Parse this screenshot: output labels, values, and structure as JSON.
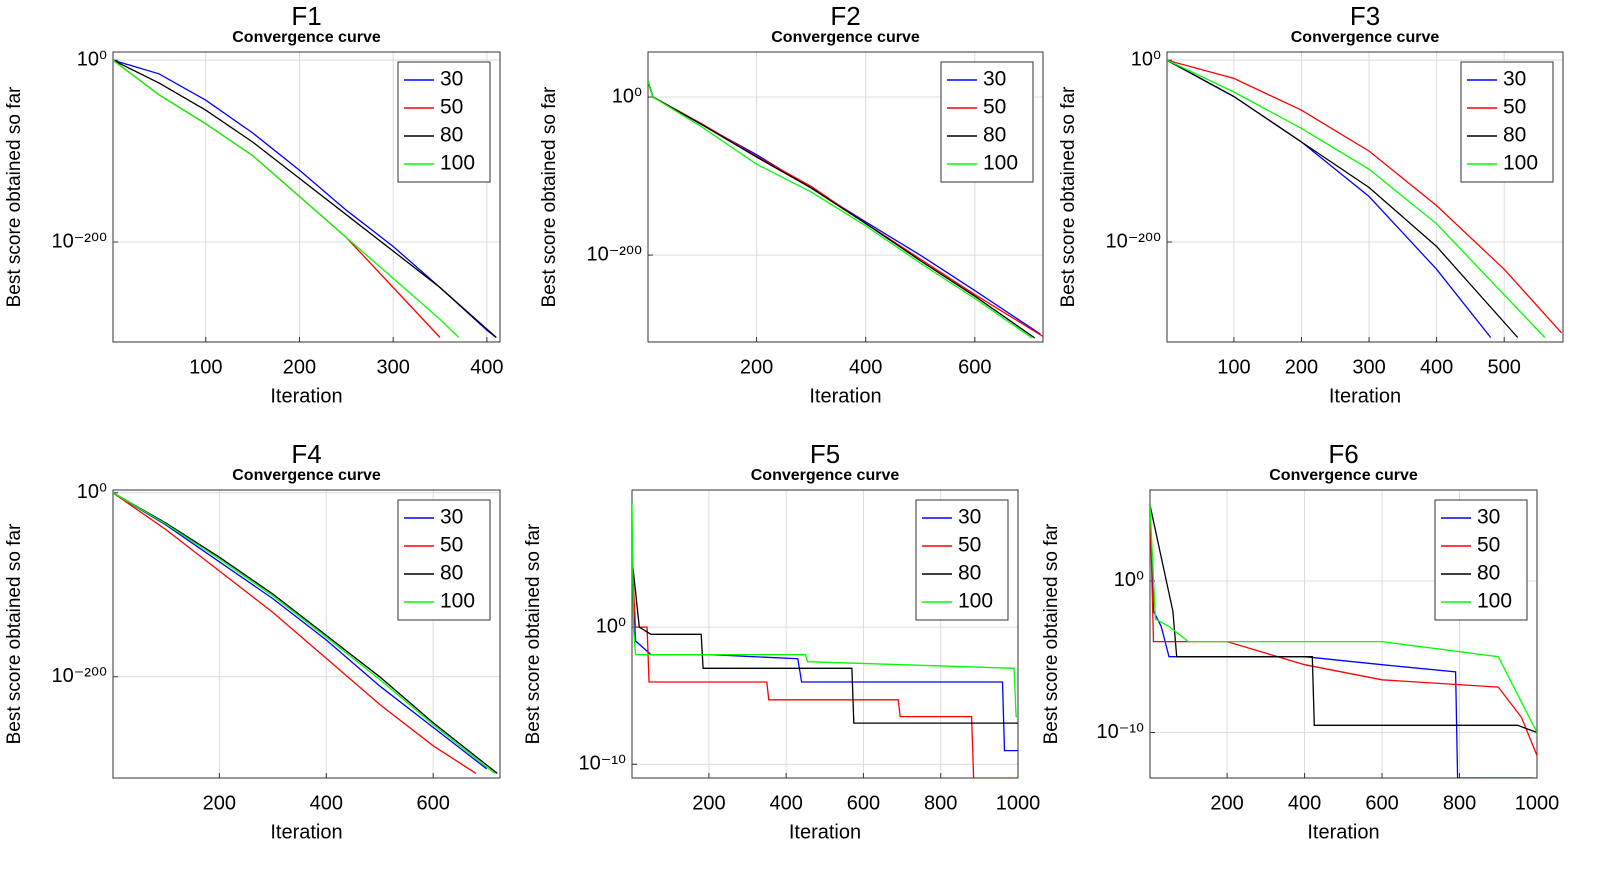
{
  "chart_data": [
    {
      "type": "line",
      "panel": "F1",
      "title": "Convergence curve",
      "xlabel": "Iteration",
      "ylabel": "Best score obtained so far",
      "log_y": true,
      "grid": true,
      "legend": "upper right",
      "xlim": [
        1,
        414
      ],
      "xticks": [
        100,
        200,
        300,
        400
      ],
      "ylim": [
        1e-310,
        1000000000.0
      ],
      "yticks": [
        {
          "value": 1,
          "label": "10⁰"
        },
        {
          "value": 1e-200,
          "label": "10⁻²⁰⁰"
        }
      ],
      "series": [
        {
          "name": "30",
          "color": "#0000ff",
          "x": [
            1,
            50,
            100,
            150,
            200,
            250,
            300,
            350,
            400,
            410
          ],
          "values": [
            1,
            1e-15,
            1e-44,
            1e-80,
            1e-121,
            1e-165,
            1e-205,
            1e-250,
            1e-297,
            1e-305
          ]
        },
        {
          "name": "50",
          "color": "#ff0000",
          "x": [
            1,
            50,
            100,
            150,
            200,
            250,
            300,
            350
          ],
          "values": [
            1,
            1e-38,
            1e-70,
            1e-105,
            1e-150,
            1e-195,
            1e-250,
            1e-305
          ]
        },
        {
          "name": "80",
          "color": "#000000",
          "x": [
            1,
            50,
            100,
            150,
            200,
            250,
            300,
            350,
            410
          ],
          "values": [
            1,
            1e-25,
            1e-55,
            1e-90,
            1e-130,
            1e-170,
            1e-210,
            1e-250,
            1e-305
          ]
        },
        {
          "name": "100",
          "color": "#00ff00",
          "x": [
            1,
            50,
            100,
            150,
            200,
            250,
            300,
            350,
            370
          ],
          "values": [
            1,
            1e-38,
            1e-70,
            1e-105,
            1e-150,
            1e-195,
            1e-240,
            1e-285,
            1e-305
          ]
        }
      ]
    },
    {
      "type": "line",
      "panel": "F2",
      "title": "Convergence curve",
      "xlabel": "Iteration",
      "ylabel": "Best score obtained so far",
      "log_y": true,
      "grid": true,
      "legend": "upper right",
      "xlim": [
        1,
        725
      ],
      "xticks": [
        200,
        400,
        600
      ],
      "ylim": [
        1e-310,
        1e+57
      ],
      "yticks": [
        {
          "value": 1,
          "label": "10⁰"
        },
        {
          "value": 1e-200,
          "label": "10⁻²⁰⁰"
        }
      ],
      "series": [
        {
          "name": "30",
          "color": "#0000ff",
          "x": [
            1,
            10,
            100,
            200,
            300,
            400,
            500,
            600,
            720
          ],
          "values": [
            1e+20,
            1,
            1e-35,
            1e-73,
            1e-115,
            1e-158,
            1e-200,
            1e-245,
            1e-300
          ]
        },
        {
          "name": "50",
          "color": "#ff0000",
          "x": [
            1,
            10,
            100,
            200,
            300,
            400,
            500,
            600,
            725
          ],
          "values": [
            1e+20,
            1,
            1e-34,
            1e-75,
            1e-113,
            1e-160,
            1e-205,
            1e-250,
            1e-303
          ]
        },
        {
          "name": "80",
          "color": "#000000",
          "x": [
            1,
            10,
            100,
            200,
            300,
            400,
            500,
            600,
            710
          ],
          "values": [
            1e+20,
            1,
            1e-35,
            1e-76,
            1e-115,
            1e-160,
            1e-207,
            1e-252,
            1e-305
          ]
        },
        {
          "name": "100",
          "color": "#00ff00",
          "x": [
            1,
            10,
            100,
            200,
            300,
            400,
            500,
            600,
            705
          ],
          "values": [
            1e+20,
            1,
            1e-38,
            1e-85,
            1e-120,
            1e-163,
            1e-210,
            1e-255,
            1e-305
          ]
        }
      ]
    },
    {
      "type": "line",
      "panel": "F3",
      "title": "Convergence curve",
      "xlabel": "Iteration",
      "ylabel": "Best score obtained so far",
      "log_y": true,
      "grid": true,
      "legend": "upper right",
      "xlim": [
        1,
        587
      ],
      "xticks": [
        100,
        200,
        300,
        400,
        500
      ],
      "ylim": [
        1e-310,
        1000000000.0
      ],
      "yticks": [
        {
          "value": 1,
          "label": "10⁰"
        },
        {
          "value": 1e-200,
          "label": "10⁻²⁰⁰"
        }
      ],
      "series": [
        {
          "name": "30",
          "color": "#0000ff",
          "x": [
            1,
            100,
            200,
            300,
            400,
            480
          ],
          "values": [
            1,
            1e-40,
            1e-90,
            1e-150,
            1e-230,
            1e-305
          ]
        },
        {
          "name": "50",
          "color": "#ff0000",
          "x": [
            1,
            100,
            200,
            300,
            400,
            500,
            585
          ],
          "values": [
            1,
            1e-20,
            1e-55,
            1e-100,
            1e-160,
            1e-230,
            1e-300
          ]
        },
        {
          "name": "80",
          "color": "#000000",
          "x": [
            1,
            100,
            200,
            300,
            400,
            520
          ],
          "values": [
            1,
            1e-40,
            1e-90,
            1e-140,
            1e-205,
            1e-305
          ]
        },
        {
          "name": "100",
          "color": "#00ff00",
          "x": [
            1,
            100,
            200,
            300,
            400,
            560
          ],
          "values": [
            1,
            1e-35,
            1e-75,
            1e-120,
            1e-180,
            1e-305
          ]
        }
      ]
    },
    {
      "type": "line",
      "panel": "F4",
      "title": "Convergence curve",
      "xlabel": "Iteration",
      "ylabel": "Best score obtained so far",
      "log_y": true,
      "grid": true,
      "legend": "upper right",
      "xlim": [
        1,
        725
      ],
      "xticks": [
        200,
        400,
        600
      ],
      "ylim": [
        1e-310,
        1000.0
      ],
      "yticks": [
        {
          "value": 1,
          "label": "10⁰"
        },
        {
          "value": 1e-200,
          "label": "10⁻²⁰⁰"
        }
      ],
      "series": [
        {
          "name": "30",
          "color": "#0000ff",
          "x": [
            1,
            100,
            200,
            300,
            400,
            500,
            600,
            700
          ],
          "values": [
            1,
            1e-35,
            1e-75,
            1e-115,
            1e-160,
            1e-210,
            1e-255,
            1e-300
          ]
        },
        {
          "name": "50",
          "color": "#ff0000",
          "x": [
            1,
            100,
            200,
            300,
            400,
            500,
            600,
            680
          ],
          "values": [
            1,
            1e-40,
            1e-85,
            1e-130,
            1e-180,
            1e-230,
            1e-275,
            1e-305
          ]
        },
        {
          "name": "80",
          "color": "#000000",
          "x": [
            1,
            100,
            200,
            300,
            400,
            500,
            600,
            720
          ],
          "values": [
            1,
            1e-33,
            1e-70,
            1e-110,
            1e-155,
            1e-200,
            1e-250,
            1e-305
          ]
        },
        {
          "name": "100",
          "color": "#00ff00",
          "x": [
            1,
            100,
            200,
            300,
            400,
            500,
            600,
            715
          ],
          "values": [
            1,
            1e-34,
            1e-72,
            1e-112,
            1e-157,
            1e-203,
            1e-252,
            1e-305
          ]
        }
      ]
    },
    {
      "type": "line",
      "panel": "F5",
      "title": "Convergence curve",
      "xlabel": "Iteration",
      "ylabel": "Best score obtained so far",
      "log_y": true,
      "grid": true,
      "legend": "upper right",
      "xlim": [
        1,
        1000
      ],
      "xticks": [
        200,
        400,
        600,
        800,
        1000
      ],
      "ylim": [
        1e-11,
        10000000000.0
      ],
      "yticks": [
        {
          "value": 1,
          "label": "10⁰"
        },
        {
          "value": 1e-10,
          "label": "10⁻¹⁰"
        }
      ],
      "series": [
        {
          "name": "30",
          "color": "#0000ff",
          "x": [
            1,
            10,
            50,
            200,
            430,
            440,
            880,
            960,
            965,
            1000
          ],
          "values": [
            100000.0,
            0.1,
            0.01,
            0.01,
            0.005,
            0.0001,
            0.0001,
            0.0001,
            1e-09,
            1e-09
          ]
        },
        {
          "name": "50",
          "color": "#ff0000",
          "x": [
            1,
            10,
            40,
            45,
            350,
            355,
            690,
            695,
            880,
            885,
            1000
          ],
          "values": [
            100000.0,
            1,
            1,
            0.0001,
            0.0001,
            5e-06,
            5e-06,
            3e-07,
            3e-07,
            1e-11,
            1e-11
          ]
        },
        {
          "name": "80",
          "color": "#000000",
          "x": [
            1,
            20,
            50,
            180,
            185,
            570,
            575,
            1000
          ],
          "values": [
            100000.0,
            1,
            0.3,
            0.3,
            0.001,
            0.001,
            1e-07,
            1e-07
          ]
        },
        {
          "name": "100",
          "color": "#00ff00",
          "x": [
            1,
            5,
            10,
            200,
            450,
            455,
            990,
            995,
            1000
          ],
          "values": [
            1000000000.0,
            1,
            0.01,
            0.01,
            0.01,
            0.003,
            0.001,
            3e-07,
            3e-07
          ]
        }
      ]
    },
    {
      "type": "line",
      "panel": "F6",
      "title": "Convergence curve",
      "xlabel": "Iteration",
      "ylabel": "Best score obtained so far",
      "log_y": true,
      "grid": true,
      "legend": "upper right",
      "xlim": [
        1,
        1000
      ],
      "xticks": [
        200,
        400,
        600,
        800,
        1000
      ],
      "ylim": [
        1e-13,
        1000000.0
      ],
      "yticks": [
        {
          "value": 1,
          "label": "10⁰"
        },
        {
          "value": 1e-10,
          "label": "10⁻¹⁰"
        }
      ],
      "series": [
        {
          "name": "30",
          "color": "#0000ff",
          "x": [
            1,
            10,
            30,
            50,
            400,
            600,
            790,
            795,
            990,
            1000
          ],
          "values": [
            100000.0,
            0.01,
            0.001,
            1e-05,
            1e-05,
            3e-06,
            1e-06,
            1e-13,
            1e-13,
            6e-14
          ]
        },
        {
          "name": "50",
          "color": "#ff0000",
          "x": [
            1,
            10,
            200,
            400,
            600,
            900,
            960,
            1000
          ],
          "values": [
            100000.0,
            0.0001,
            0.0001,
            3e-06,
            3e-07,
            1e-07,
            1e-09,
            3e-12
          ]
        },
        {
          "name": "80",
          "color": "#000000",
          "x": [
            1,
            60,
            70,
            420,
            425,
            950,
            1000
          ],
          "values": [
            100000.0,
            0.01,
            1e-05,
            1e-05,
            3e-10,
            3e-10,
            1e-10
          ]
        },
        {
          "name": "100",
          "color": "#00ff00",
          "x": [
            1,
            15,
            50,
            100,
            300,
            600,
            900,
            960,
            1000
          ],
          "values": [
            100000.0,
            0.003,
            0.001,
            0.0001,
            0.0001,
            0.0001,
            1e-05,
            1e-08,
            1e-10
          ]
        }
      ]
    }
  ]
}
